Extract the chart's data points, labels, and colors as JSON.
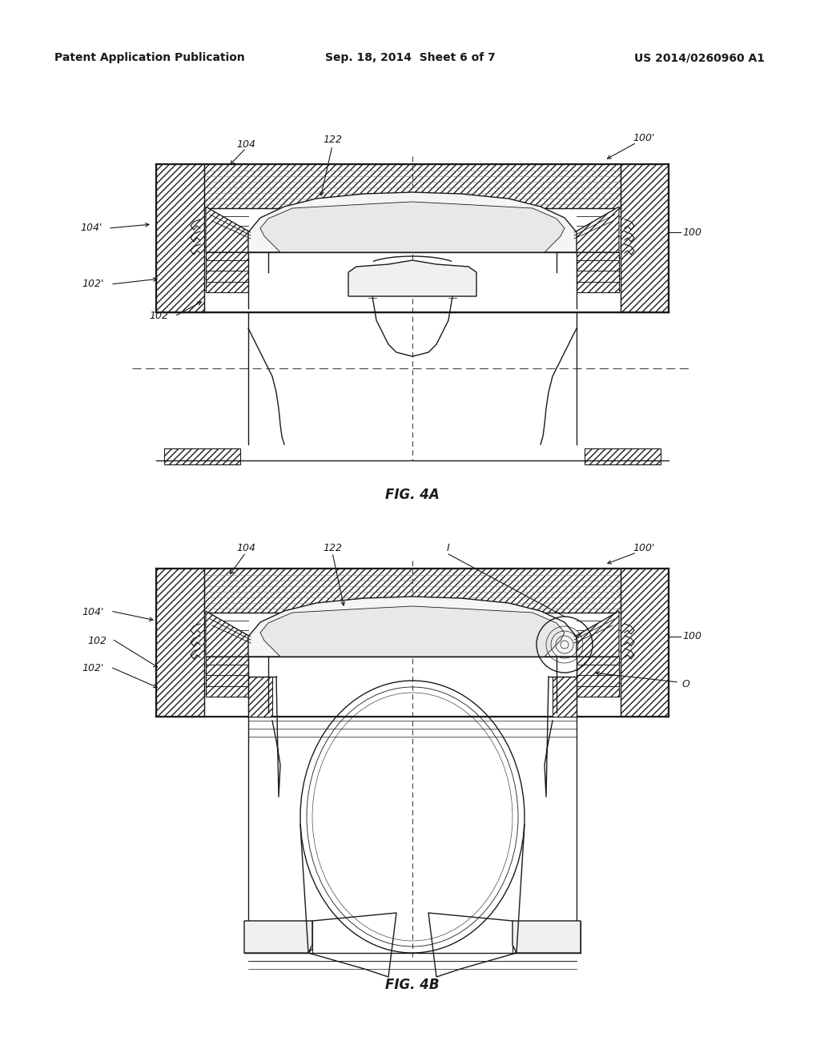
{
  "background_color": "#ffffff",
  "header_left": "Patent Application Publication",
  "header_center": "Sep. 18, 2014  Sheet 6 of 7",
  "header_right": "US 2014/0260960 A1",
  "fig4a_caption": "FIG. 4A",
  "fig4b_caption": "FIG. 4B",
  "col": "#1a1a1a",
  "lw_main": 1.0,
  "lw_thick": 1.6,
  "lw_thin": 0.6
}
